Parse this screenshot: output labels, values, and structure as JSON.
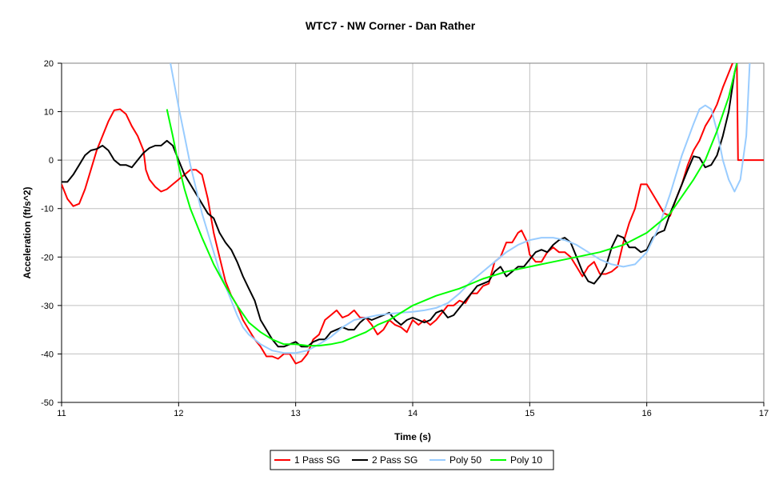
{
  "chart_data": {
    "type": "line",
    "title": "WTC7 - NW Corner - Dan Rather",
    "xlabel": "Time (s)",
    "ylabel": "Acceleration (ft/s^2)",
    "xlim": [
      11,
      17
    ],
    "ylim": [
      -50,
      20
    ],
    "xticks": [
      "11",
      "12",
      "13",
      "14",
      "15",
      "16",
      "17"
    ],
    "yticks": [
      "-50",
      "-40",
      "-30",
      "-20",
      "-10",
      "0",
      "10",
      "20"
    ],
    "grid": true,
    "legend": "bottom",
    "series": [
      {
        "name": "1 Pass SG",
        "color": "#FF0000",
        "x": [
          11.0,
          11.05,
          11.1,
          11.15,
          11.2,
          11.25,
          11.3,
          11.35,
          11.4,
          11.45,
          11.5,
          11.55,
          11.6,
          11.65,
          11.7,
          11.72,
          11.75,
          11.8,
          11.85,
          11.9,
          11.95,
          12.0,
          12.05,
          12.1,
          12.15,
          12.2,
          12.25,
          12.3,
          12.35,
          12.4,
          12.45,
          12.5,
          12.55,
          12.6,
          12.65,
          12.7,
          12.75,
          12.8,
          12.85,
          12.9,
          12.95,
          13.0,
          13.05,
          13.1,
          13.15,
          13.2,
          13.25,
          13.3,
          13.35,
          13.4,
          13.45,
          13.5,
          13.55,
          13.6,
          13.65,
          13.7,
          13.75,
          13.8,
          13.85,
          13.9,
          13.95,
          14.0,
          14.05,
          14.1,
          14.15,
          14.2,
          14.3,
          14.35,
          14.4,
          14.45,
          14.5,
          14.55,
          14.6,
          14.65,
          14.7,
          14.75,
          14.8,
          14.85,
          14.9,
          14.93,
          14.98,
          15.0,
          15.05,
          15.1,
          15.15,
          15.2,
          15.25,
          15.3,
          15.35,
          15.4,
          15.45,
          15.5,
          15.55,
          15.6,
          15.65,
          15.7,
          15.75,
          15.8,
          15.85,
          15.9,
          15.95,
          16.0,
          16.05,
          16.1,
          16.15,
          16.2,
          16.25,
          16.3,
          16.35,
          16.4,
          16.45,
          16.5,
          16.55,
          16.6,
          16.65,
          16.7,
          16.75,
          16.77,
          16.78,
          16.8,
          17.0
        ],
        "y": [
          -5,
          -8,
          -9.5,
          -9,
          -6,
          -2,
          2,
          5,
          8,
          10.3,
          10.5,
          9.5,
          7,
          5,
          2,
          -2,
          -4,
          -5.5,
          -6.5,
          -6,
          -5,
          -4,
          -3,
          -2,
          -2,
          -3,
          -8,
          -15,
          -20,
          -25,
          -28,
          -30,
          -33,
          -35,
          -37,
          -38.5,
          -40.5,
          -40.5,
          -41,
          -40,
          -40,
          -42,
          -41.5,
          -40,
          -37,
          -36,
          -33,
          -32,
          -31,
          -32.5,
          -32,
          -31,
          -32.5,
          -32.5,
          -34,
          -36,
          -35,
          -33,
          -34,
          -34.5,
          -35.5,
          -33,
          -34,
          -33,
          -34,
          -33,
          -30,
          -30,
          -29,
          -29.5,
          -27.5,
          -27.5,
          -26,
          -25.5,
          -21,
          -20,
          -17,
          -17,
          -15,
          -14.5,
          -17,
          -19.5,
          -21,
          -21,
          -19,
          -18,
          -19,
          -19,
          -20,
          -22,
          -24,
          -22,
          -21,
          -23.5,
          -23.5,
          -23,
          -22,
          -17,
          -13,
          -10,
          -5,
          -5,
          -7,
          -9,
          -11,
          -11.5,
          -8,
          -5,
          -1,
          2,
          4,
          7,
          9,
          11.5,
          15,
          18,
          21,
          20,
          0,
          0,
          0
        ]
      },
      {
        "name": "2 Pass SG",
        "color": "#000000",
        "x": [
          11.0,
          11.05,
          11.1,
          11.15,
          11.2,
          11.25,
          11.3,
          11.35,
          11.4,
          11.45,
          11.5,
          11.55,
          11.6,
          11.65,
          11.7,
          11.75,
          11.8,
          11.85,
          11.9,
          11.95,
          12.0,
          12.05,
          12.1,
          12.15,
          12.2,
          12.25,
          12.3,
          12.35,
          12.4,
          12.45,
          12.5,
          12.55,
          12.6,
          12.65,
          12.7,
          12.75,
          12.8,
          12.85,
          12.9,
          12.95,
          13.0,
          13.05,
          13.1,
          13.15,
          13.2,
          13.25,
          13.3,
          13.35,
          13.4,
          13.45,
          13.5,
          13.55,
          13.6,
          13.65,
          13.7,
          13.75,
          13.8,
          13.85,
          13.9,
          13.95,
          14.0,
          14.05,
          14.1,
          14.15,
          14.2,
          14.25,
          14.3,
          14.35,
          14.4,
          14.45,
          14.5,
          14.55,
          14.6,
          14.65,
          14.7,
          14.75,
          14.8,
          14.85,
          14.9,
          14.95,
          15.0,
          15.05,
          15.1,
          15.15,
          15.2,
          15.25,
          15.3,
          15.35,
          15.4,
          15.45,
          15.5,
          15.55,
          15.6,
          15.65,
          15.7,
          15.75,
          15.8,
          15.85,
          15.9,
          15.95,
          16.0,
          16.05,
          16.1,
          16.15,
          16.2,
          16.25,
          16.3,
          16.35,
          16.4,
          16.45,
          16.5,
          16.55,
          16.6,
          16.65,
          16.7,
          16.75,
          16.77
        ],
        "y": [
          -4.5,
          -4.5,
          -3,
          -1,
          1,
          2,
          2.3,
          3,
          2,
          0,
          -1,
          -1,
          -1.5,
          0,
          1.5,
          2.5,
          3,
          3,
          4,
          3,
          0,
          -3,
          -5,
          -7,
          -9,
          -11,
          -12,
          -15,
          -17,
          -18.5,
          -21,
          -24,
          -26.5,
          -29,
          -33,
          -35,
          -37,
          -38.5,
          -38.5,
          -38,
          -37.5,
          -38.5,
          -38.5,
          -37.5,
          -37,
          -37,
          -35.5,
          -35,
          -34.5,
          -35,
          -35,
          -33.5,
          -32.5,
          -33,
          -32.5,
          -32,
          -31.5,
          -33,
          -34,
          -33,
          -32.5,
          -33,
          -33.5,
          -33,
          -31.5,
          -31,
          -32.5,
          -32,
          -30.5,
          -29,
          -27.5,
          -26,
          -25.5,
          -25,
          -23,
          -22,
          -24,
          -23,
          -22,
          -22,
          -20.5,
          -19,
          -18.5,
          -19,
          -17.5,
          -16.5,
          -16,
          -17,
          -20,
          -23,
          -25,
          -25.5,
          -24,
          -22,
          -18,
          -15.5,
          -16,
          -18,
          -18,
          -19,
          -18.5,
          -16,
          -15,
          -14.5,
          -11,
          -8,
          -5,
          -2,
          0.8,
          0.5,
          -1.5,
          -1,
          1,
          5,
          10,
          18,
          20
        ]
      },
      {
        "name": "Poly 50",
        "color": "#99CCFF",
        "x": [
          11.93,
          12.0,
          12.05,
          12.1,
          12.15,
          12.2,
          12.25,
          12.3,
          12.35,
          12.4,
          12.45,
          12.5,
          12.55,
          12.6,
          12.7,
          12.8,
          12.9,
          13.0,
          13.1,
          13.2,
          13.3,
          13.4,
          13.5,
          13.6,
          13.7,
          13.8,
          13.9,
          14.0,
          14.1,
          14.2,
          14.3,
          14.4,
          14.5,
          14.6,
          14.7,
          14.8,
          14.9,
          15.0,
          15.1,
          15.2,
          15.3,
          15.4,
          15.5,
          15.6,
          15.7,
          15.8,
          15.9,
          16.0,
          16.1,
          16.2,
          16.3,
          16.4,
          16.45,
          16.5,
          16.55,
          16.6,
          16.65,
          16.7,
          16.75,
          16.8,
          16.85,
          16.88
        ],
        "y": [
          20,
          11,
          5,
          -1,
          -6,
          -11,
          -15,
          -19,
          -23,
          -26,
          -29,
          -32,
          -34.5,
          -36,
          -38,
          -39.3,
          -39.8,
          -39.8,
          -39.3,
          -38,
          -36.5,
          -34.5,
          -33,
          -32.5,
          -32,
          -31.7,
          -31.5,
          -31.3,
          -31,
          -30.5,
          -29.5,
          -27.5,
          -25,
          -23,
          -21,
          -19,
          -17.5,
          -16.5,
          -16,
          -16,
          -16.5,
          -17.5,
          -19,
          -20.5,
          -21.5,
          -22,
          -21.5,
          -19,
          -14,
          -7,
          1,
          7.5,
          10.5,
          11.3,
          10.5,
          6,
          0,
          -4,
          -6.5,
          -4,
          5,
          20
        ]
      },
      {
        "name": "Poly 10",
        "color": "#00FF00",
        "x": [
          11.9,
          11.95,
          12.0,
          12.05,
          12.1,
          12.2,
          12.3,
          12.4,
          12.5,
          12.6,
          12.7,
          12.8,
          12.9,
          13.0,
          13.1,
          13.2,
          13.3,
          13.4,
          13.5,
          13.6,
          13.7,
          13.8,
          13.9,
          14.0,
          14.2,
          14.4,
          14.6,
          14.8,
          15.0,
          15.2,
          15.4,
          15.6,
          15.8,
          16.0,
          16.2,
          16.4,
          16.5,
          16.6,
          16.7,
          16.77
        ],
        "y": [
          10.5,
          5,
          -1,
          -6,
          -10,
          -16,
          -21.5,
          -26,
          -30,
          -33.5,
          -35.5,
          -37,
          -38,
          -38,
          -38.3,
          -38.3,
          -38,
          -37.5,
          -36.5,
          -35.5,
          -34,
          -33,
          -31.5,
          -30,
          -28,
          -26.5,
          -24.5,
          -23,
          -22,
          -21,
          -20,
          -19,
          -17.5,
          -15,
          -11,
          -4,
          0,
          6,
          13,
          20
        ]
      }
    ]
  }
}
